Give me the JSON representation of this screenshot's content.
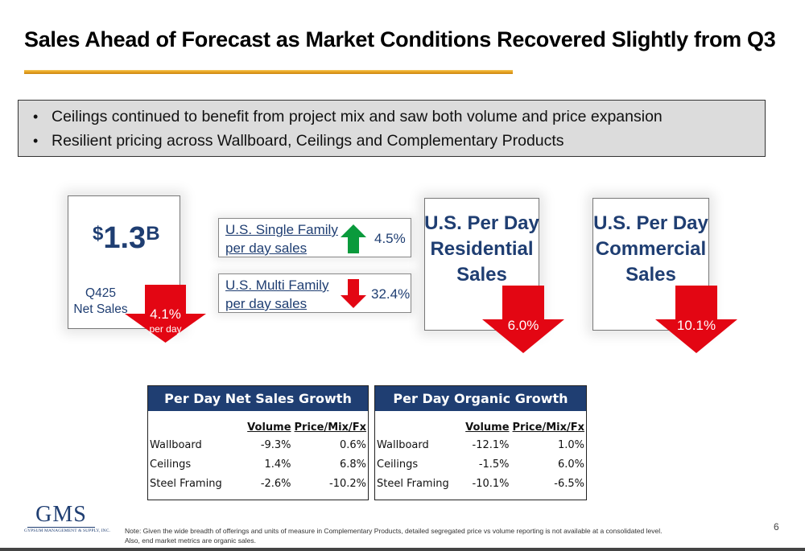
{
  "title": "Sales Ahead of Forecast as Market Conditions Recovered Slightly from Q3",
  "bullets": [
    "Ceilings continued to benefit from project mix and saw both volume and price expansion",
    "Resilient pricing across Wallboard, Ceilings and Complementary Products"
  ],
  "net_sales": {
    "currency": "$",
    "value": "1.3",
    "unit": "B",
    "label_line1": "Q425",
    "label_line2": "Net Sales",
    "change": "4.1%",
    "change_sub": "per day"
  },
  "single_family": {
    "line1": "U.S. Single Family",
    "line2": "per day sales",
    "value": "4.5%",
    "direction": "up",
    "color": "#0a9a3c"
  },
  "multi_family": {
    "line1": "U.S. Multi Family",
    "line2": "per day sales",
    "value": "32.4%",
    "direction": "down",
    "color": "#e30613"
  },
  "residential": {
    "line1": "U.S. Per Day",
    "line2": "Residential",
    "line3": "Sales",
    "change": "6.0%"
  },
  "commercial": {
    "line1": "U.S. Per Day",
    "line2": "Commercial",
    "line3": "Sales",
    "change": "10.1%"
  },
  "net_sales_growth": {
    "title": "Per Day Net Sales Growth",
    "col1": "Volume",
    "col2": "Price/Mix/Fx",
    "rows": [
      {
        "label": "Wallboard",
        "volume": "-9.3%",
        "price": "0.6%"
      },
      {
        "label": "Ceilings",
        "volume": "1.4%",
        "price": "6.8%"
      },
      {
        "label": "Steel Framing",
        "volume": "-2.6%",
        "price": "-10.2%"
      }
    ]
  },
  "organic_growth": {
    "title": "Per Day Organic Growth",
    "col1": "Volume",
    "col2": "Price/Mix/Fx",
    "rows": [
      {
        "label": "Wallboard",
        "volume": "-12.1%",
        "price": "1.0%"
      },
      {
        "label": "Ceilings",
        "volume": "-1.5%",
        "price": "6.0%"
      },
      {
        "label": "Steel Framing",
        "volume": "-10.1%",
        "price": "-6.5%"
      }
    ]
  },
  "logo": {
    "main": "GMS",
    "sub": "GYPSUM MANAGEMENT & SUPPLY, INC."
  },
  "note": {
    "line1": "Note: Given the wide breadth of offerings and units of measure in Complementary Products, detailed segregated price vs volume reporting is not available at a consolidated level.",
    "line2": "Also, end market metrics are organic sales."
  },
  "page_number": "6",
  "colors": {
    "navy": "#1f3e72",
    "red_arrow": "#e30613",
    "green_arrow": "#0a9a3c",
    "gold_rule": "#e8a21c"
  }
}
